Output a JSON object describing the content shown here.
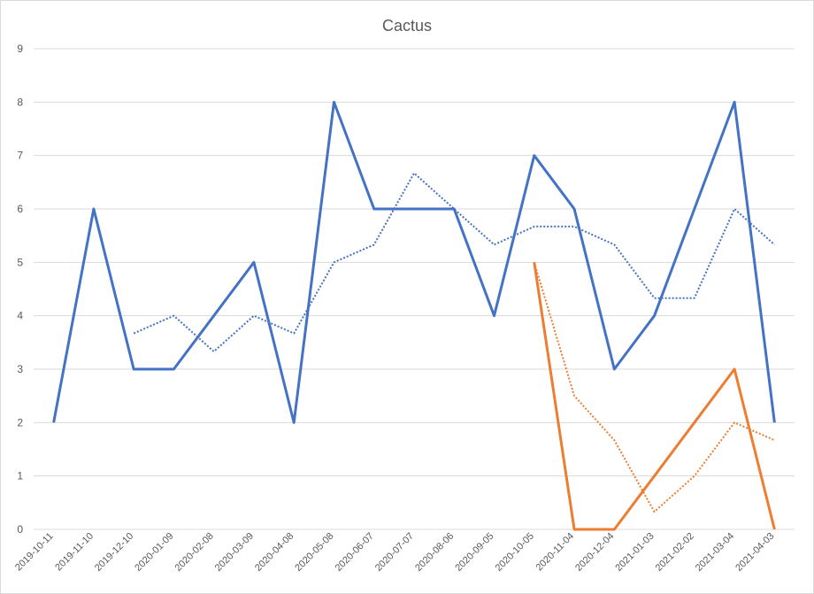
{
  "chart_data": {
    "type": "line",
    "title": "Cactus",
    "xlabel": "",
    "ylabel": "",
    "ylim": [
      0,
      9
    ],
    "yticks": [
      "0",
      "1",
      "2",
      "3",
      "4",
      "5",
      "6",
      "7",
      "8",
      "9"
    ],
    "grid": true,
    "legend": "none",
    "categories": [
      "2019-10-11",
      "2019-11-10",
      "2019-12-10",
      "2020-01-09",
      "2020-02-08",
      "2020-03-09",
      "2020-04-08",
      "2020-05-08",
      "2020-06-07",
      "2020-07-07",
      "2020-08-06",
      "2020-09-05",
      "2020-10-05",
      "2020-11-04",
      "2020-12-04",
      "2021-01-03",
      "2021-02-02",
      "2021-03-04",
      "2021-04-03"
    ],
    "series": [
      {
        "color": "#4472c4",
        "style": "solid",
        "values": [
          2,
          6,
          3,
          3,
          4,
          5,
          2,
          8,
          6,
          6,
          6,
          4,
          7,
          6,
          3,
          4,
          6,
          8,
          2
        ]
      },
      {
        "color": "#4472c4",
        "style": "dotted",
        "values": [
          null,
          null,
          3.67,
          4,
          3.33,
          4,
          3.67,
          5,
          5.33,
          6.67,
          6,
          5.33,
          5.67,
          5.67,
          5.33,
          4.33,
          4.33,
          6,
          5.33
        ]
      },
      {
        "color": "#ed7d31",
        "style": "solid",
        "values": [
          null,
          null,
          null,
          null,
          null,
          null,
          null,
          null,
          null,
          null,
          null,
          null,
          5,
          0,
          0,
          1,
          2,
          3,
          0
        ]
      },
      {
        "color": "#ed7d31",
        "style": "dotted",
        "values": [
          null,
          null,
          null,
          null,
          null,
          null,
          null,
          null,
          null,
          null,
          null,
          null,
          5,
          2.5,
          1.67,
          0.33,
          1,
          2,
          1.67
        ]
      }
    ]
  }
}
